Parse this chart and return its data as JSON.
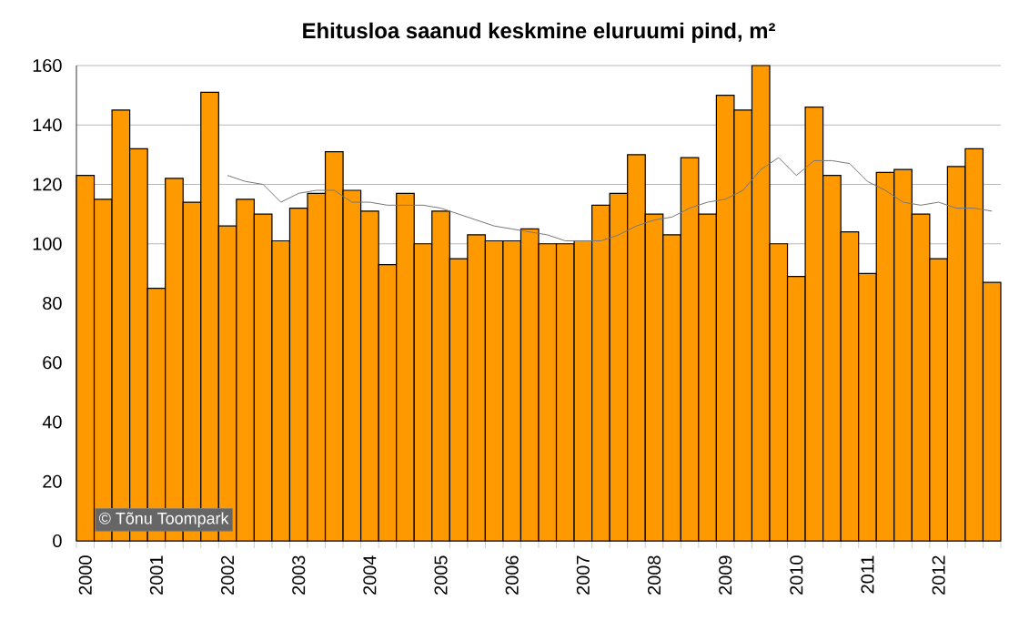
{
  "chart_data": {
    "type": "bar",
    "title": "Ehitusloa saanud keskmine eluruumi pind, m²",
    "categories": [
      "2000",
      null,
      null,
      null,
      "2001",
      null,
      null,
      null,
      "2002",
      null,
      null,
      null,
      "2003",
      null,
      null,
      null,
      "2004",
      null,
      null,
      null,
      "2005",
      null,
      null,
      null,
      "2006",
      null,
      null,
      null,
      "2007",
      null,
      null,
      null,
      "2008",
      null,
      null,
      null,
      "2009",
      null,
      null,
      null,
      "2010",
      null,
      null,
      null,
      "2011",
      null,
      null,
      null,
      "2012",
      null,
      null,
      null
    ],
    "series": [
      {
        "color": "#ff9900",
        "values": [
          123,
          115,
          145,
          132,
          85,
          122,
          114,
          151,
          106,
          115,
          110,
          101,
          112,
          117,
          131,
          118,
          111,
          93,
          117,
          100,
          111,
          95,
          103,
          101,
          101,
          105,
          100,
          100,
          101,
          113,
          117,
          130,
          110,
          103,
          129,
          110,
          150,
          145,
          160,
          100,
          89,
          146,
          123,
          104,
          90,
          124,
          125,
          110,
          95,
          126,
          132,
          87
        ]
      },
      {
        "type": "line",
        "color": "#777777",
        "values": [
          null,
          null,
          null,
          null,
          null,
          null,
          null,
          null,
          123,
          121,
          120,
          114,
          117,
          118,
          118,
          114,
          114,
          113,
          113,
          113,
          112,
          110,
          108,
          106,
          105,
          104,
          103,
          101,
          101,
          101,
          103,
          106,
          108,
          109,
          112,
          114,
          115,
          118,
          125,
          129,
          123,
          128,
          128,
          127,
          121,
          118,
          114,
          113,
          114,
          112,
          112,
          111
        ]
      }
    ],
    "ylim": [
      0,
      160
    ],
    "yticks": [
      0,
      20,
      40,
      60,
      80,
      100,
      120,
      140,
      160
    ],
    "grid": "y",
    "annotations": [
      "© Tõnu Toompark"
    ]
  }
}
